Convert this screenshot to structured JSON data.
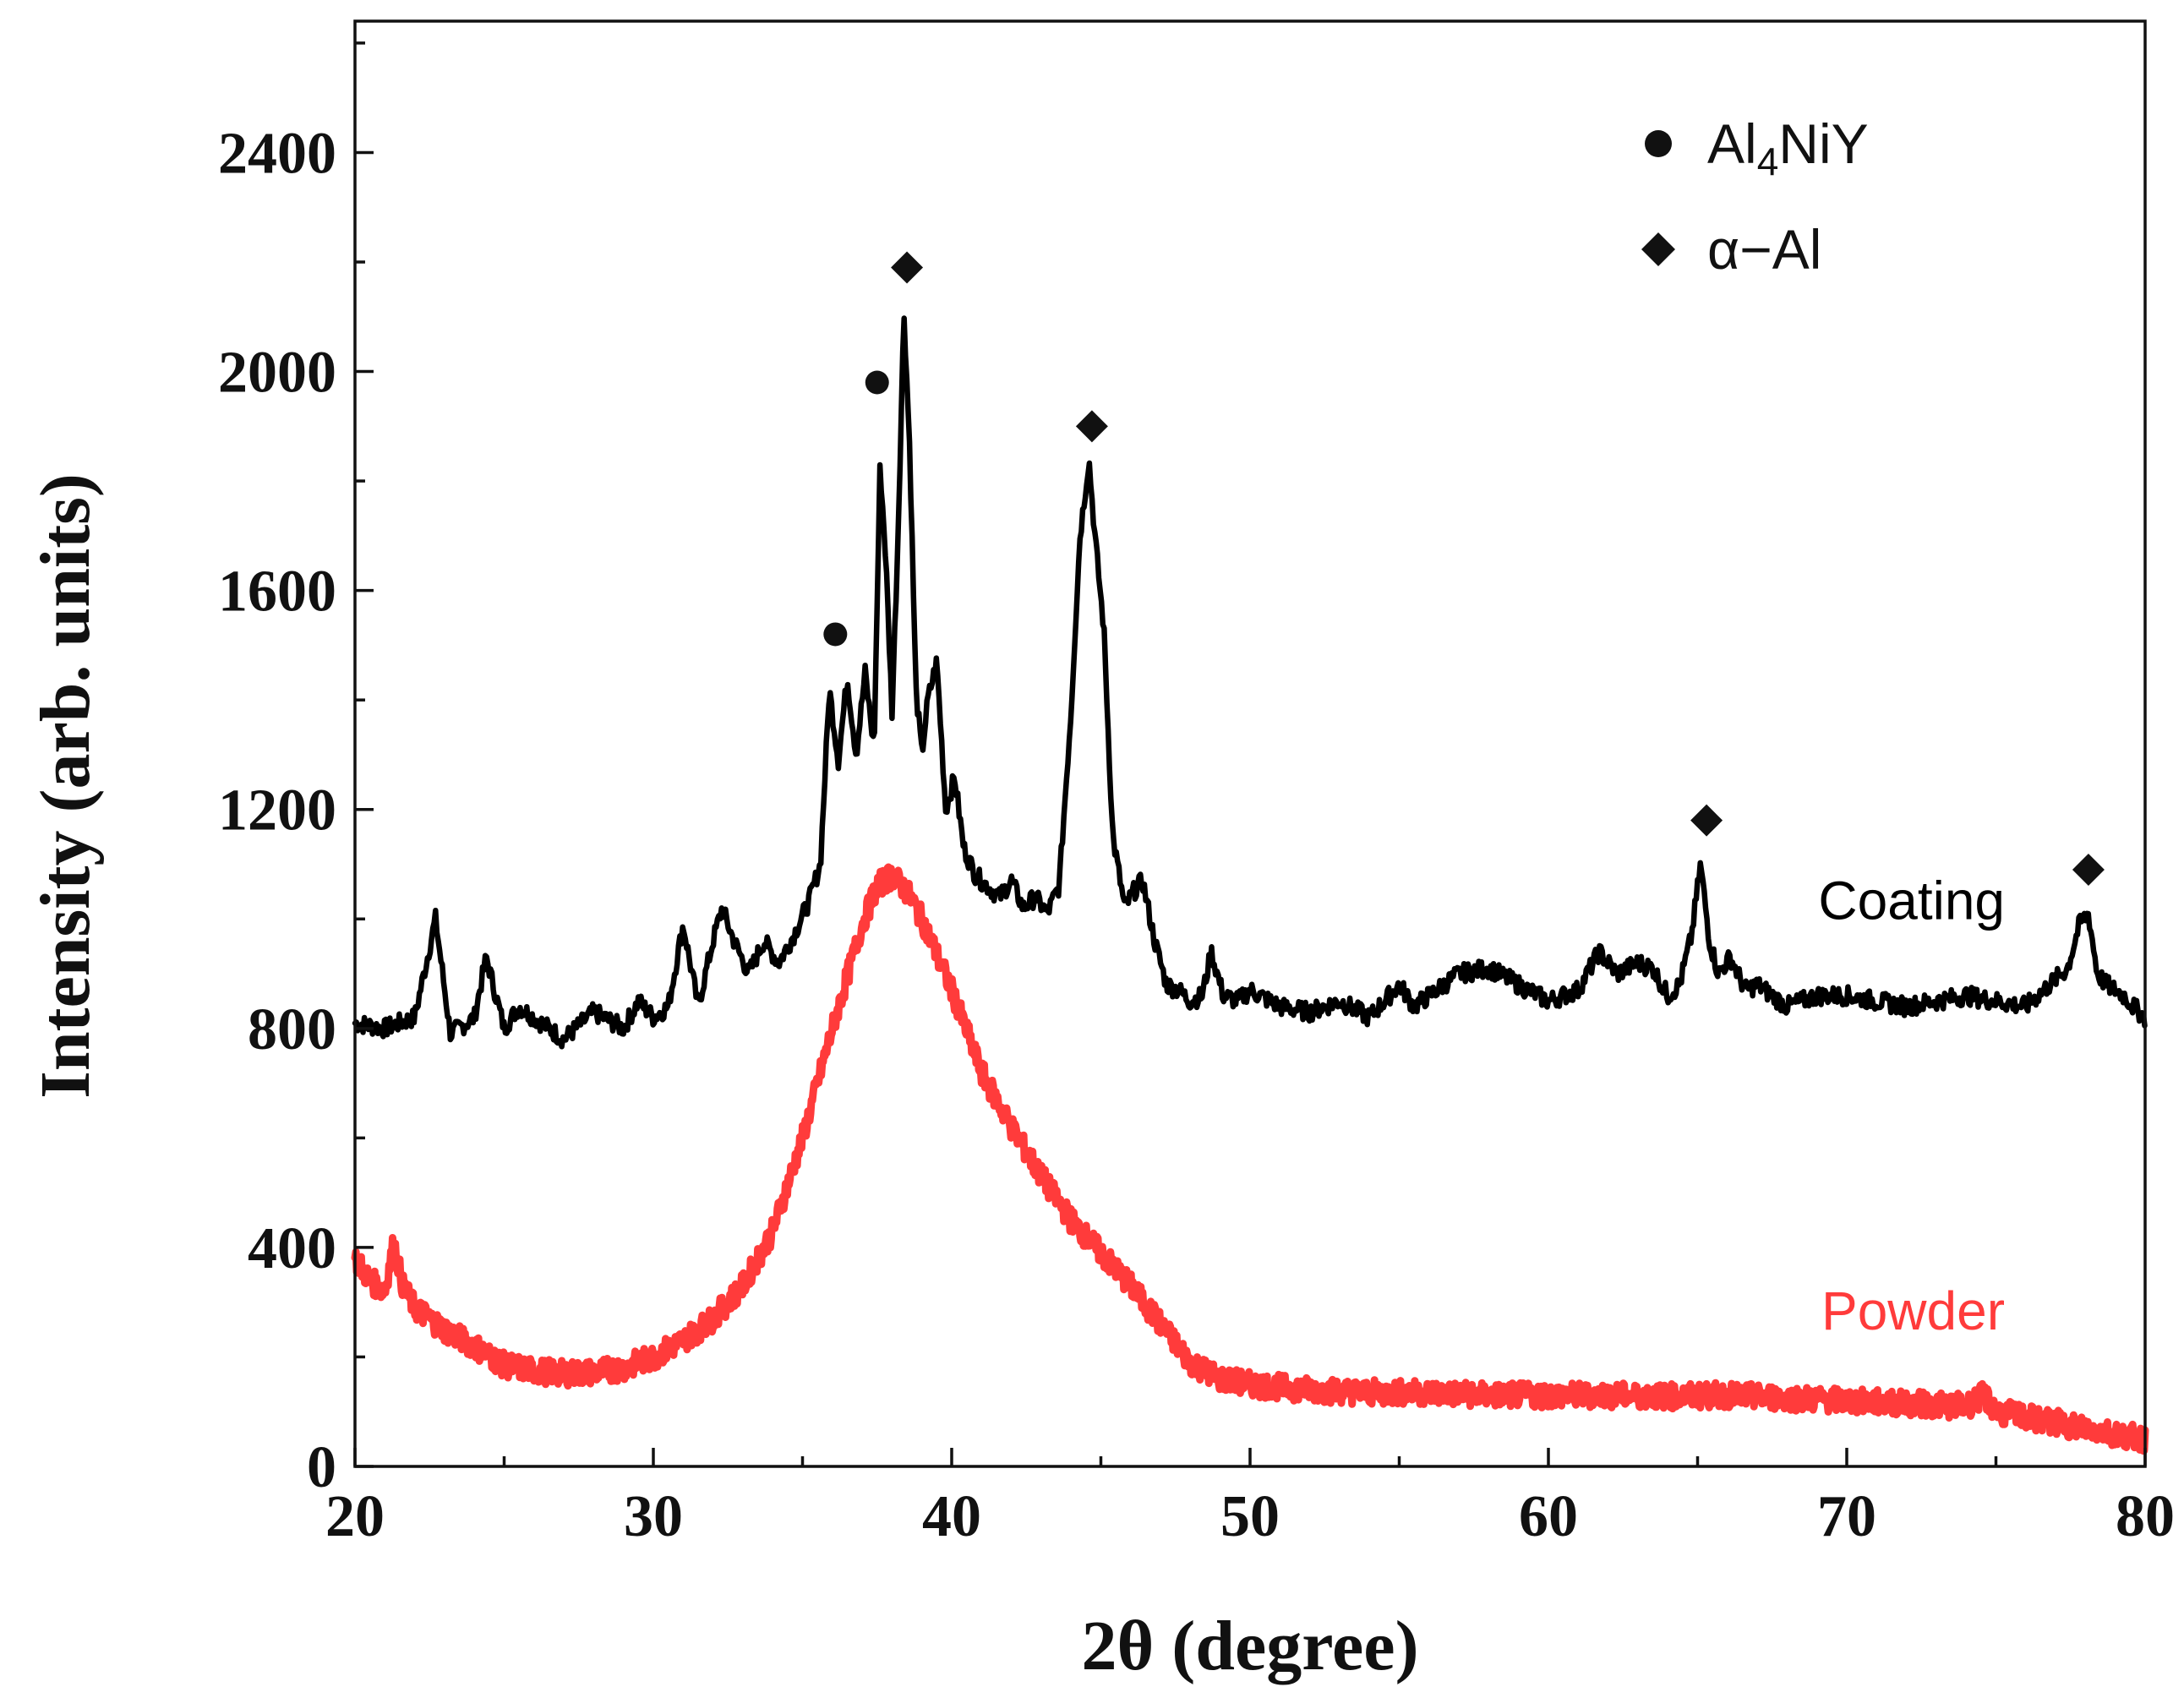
{
  "chart_data": {
    "type": "line",
    "title": "",
    "xlabel": "2θ (degree)",
    "ylabel": "Intensity (arb. units)",
    "xlim": [
      20,
      80
    ],
    "ylim": [
      0,
      2640
    ],
    "x_ticks": [
      20,
      30,
      40,
      50,
      60,
      70,
      80
    ],
    "x_tick_labels": [
      "20",
      "30",
      "40",
      "50",
      "60",
      "70",
      "80"
    ],
    "y_ticks": [
      0,
      400,
      800,
      1200,
      1600,
      2000,
      2400
    ],
    "y_tick_labels": [
      "0",
      "400",
      "800",
      "1200",
      "1600",
      "2000",
      "2400"
    ],
    "grid": false,
    "legend_position": "top-right",
    "series": [
      {
        "name": "Coating",
        "color": "#000000",
        "x": [
          20,
          21,
          22,
          22.7,
          23.2,
          24,
          24.4,
          25,
          25.5,
          26,
          27,
          28,
          29,
          29.5,
          30,
          30.5,
          31,
          31.5,
          32,
          32.3,
          32.7,
          33.2,
          33.7,
          34.2,
          34.7,
          35.2,
          35.6,
          35.9,
          36.2,
          36.5,
          36.8,
          37.1,
          37.4,
          37.6,
          37.8,
          38,
          38.2,
          38.4,
          38.6,
          38.8,
          39,
          39.2,
          39.5,
          39.8,
          40.1,
          40.4,
          40.8,
          41.2,
          41.6,
          42,
          42.4,
          42.8,
          43.2,
          43.6,
          44,
          44.3,
          44.6,
          44.8,
          45.1,
          45.4,
          45.8,
          46.1,
          46.4,
          46.8,
          47.2,
          47.6,
          48,
          48.4,
          48.7,
          49.1,
          49.6,
          50,
          51,
          52,
          53,
          54,
          55,
          55.5,
          56,
          57,
          58,
          59,
          60,
          61,
          61.7,
          62.3,
          63,
          63.5,
          64,
          64.4,
          64.8,
          65.1,
          65.4,
          65.7,
          66.1,
          66.6,
          67,
          68,
          69,
          70,
          71,
          72,
          73,
          74,
          75,
          76,
          76.8,
          77.4,
          77.8,
          78.1,
          78.4,
          78.7,
          79,
          79.3,
          79.6,
          80
        ],
        "values": [
          810,
          800,
          820,
          1000,
          790,
          820,
          930,
          800,
          840,
          820,
          780,
          830,
          800,
          850,
          820,
          840,
          990,
          840,
          960,
          1020,
          960,
          900,
          960,
          920,
          970,
          1030,
          1100,
          1420,
          1290,
          1440,
          1300,
          1450,
          1310,
          1830,
          1650,
          1380,
          1700,
          2110,
          1850,
          1420,
          1300,
          1400,
          1470,
          1200,
          1260,
          1130,
          1080,
          1060,
          1040,
          1070,
          1020,
          1040,
          1010,
          1060,
          1380,
          1700,
          1840,
          1700,
          1530,
          1150,
          1020,
          1050,
          1070,
          960,
          880,
          870,
          850,
          860,
          940,
          860,
          850,
          870,
          840,
          830,
          850,
          820,
          880,
          840,
          860,
          900,
          910,
          880,
          850,
          870,
          940,
          900,
          920,
          910,
          860,
          880,
          970,
          1100,
          960,
          900,
          930,
          870,
          880,
          840,
          860,
          860,
          850,
          840,
          850,
          860,
          850,
          840,
          880,
          910,
          990,
          1010,
          900,
          880,
          870,
          860,
          840,
          820
        ],
        "label_text": "Coating"
      },
      {
        "name": "Powder",
        "color": "#ff3b3b",
        "x": [
          20,
          20.5,
          21,
          21.3,
          21.6,
          22,
          23,
          24,
          25,
          26,
          27,
          28,
          29,
          30,
          31,
          32,
          33,
          34,
          35,
          36,
          37,
          37.5,
          38,
          38.5,
          39,
          40,
          41,
          42,
          43,
          44,
          45,
          46,
          47,
          48,
          49,
          50,
          52,
          54,
          56,
          58,
          60,
          62,
          64,
          66,
          68,
          70,
          72,
          74,
          74.6,
          75,
          76,
          77,
          78,
          79,
          80
        ],
        "values": [
          380,
          340,
          320,
          410,
          330,
          290,
          250,
          220,
          185,
          175,
          170,
          172,
          180,
          200,
          230,
          270,
          330,
          430,
          600,
          800,
          990,
          1060,
          1080,
          1050,
          1000,
          870,
          720,
          620,
          530,
          450,
          390,
          330,
          260,
          190,
          160,
          150,
          140,
          135,
          135,
          130,
          130,
          130,
          128,
          130,
          125,
          120,
          115,
          110,
          130,
          100,
          90,
          80,
          70,
          60,
          50
        ],
        "label_text": "Powder"
      }
    ],
    "legend": [
      {
        "marker": "circle",
        "label_main": "Al",
        "label_sub": "4",
        "label_rest": "NiY"
      },
      {
        "marker": "diamond",
        "label_main": "α−Al",
        "label_sub": "",
        "label_rest": ""
      }
    ],
    "annotations": [
      {
        "marker": "circle",
        "x": 36.1,
        "y": 1520,
        "phase": "Al4NiY"
      },
      {
        "marker": "circle",
        "x": 37.5,
        "y": 1980,
        "phase": "Al4NiY"
      },
      {
        "marker": "diamond",
        "x": 38.5,
        "y": 2190,
        "phase": "α-Al"
      },
      {
        "marker": "diamond",
        "x": 44.7,
        "y": 1900,
        "phase": "α-Al"
      },
      {
        "marker": "diamond",
        "x": 65.3,
        "y": 1180,
        "phase": "α-Al"
      },
      {
        "marker": "diamond",
        "x": 78.1,
        "y": 1090,
        "phase": "α-Al"
      }
    ]
  }
}
